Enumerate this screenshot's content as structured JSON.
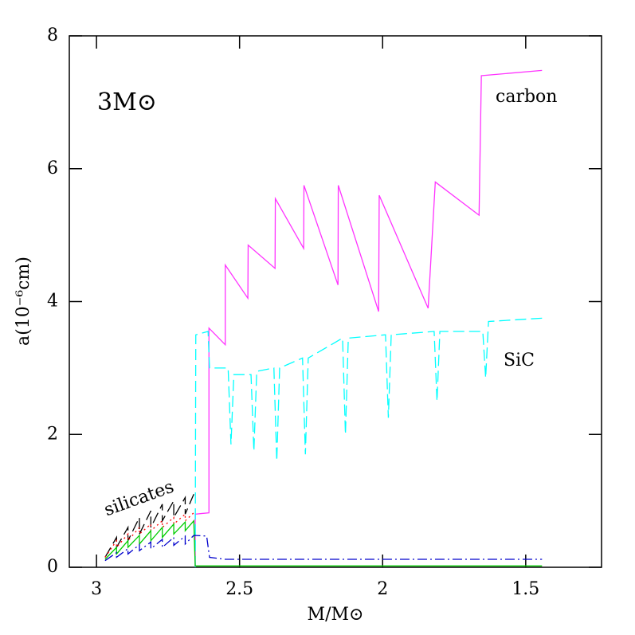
{
  "chart_data": {
    "type": "line",
    "xlabel": "M/M⊙",
    "ylabel": "a(10⁻⁶cm)",
    "annotations": [
      "3M⊙",
      "carbon",
      "SiC",
      "silicates"
    ],
    "xlim": [
      3.095,
      1.235
    ],
    "ylim": [
      0,
      8
    ],
    "xticks": [
      3,
      2.5,
      2,
      1.5
    ],
    "yticks": [
      0,
      2,
      4,
      6,
      8
    ],
    "series": [
      {
        "name": "carbon",
        "color": "#ff33ff",
        "style": "solid",
        "x": [
          2.655,
          2.655,
          2.607,
          2.607,
          2.55,
          2.55,
          2.471,
          2.47,
          2.376,
          2.375,
          2.276,
          2.275,
          2.156,
          2.155,
          2.014,
          2.012,
          1.841,
          1.816,
          1.663,
          1.655,
          1.443
        ],
        "values": [
          0,
          0.8,
          0.82,
          3.6,
          3.35,
          4.55,
          4.05,
          4.85,
          4.5,
          5.55,
          4.8,
          5.75,
          4.25,
          5.75,
          3.85,
          5.6,
          3.9,
          5.8,
          5.3,
          7.4,
          7.48
        ]
      },
      {
        "name": "SiC",
        "color": "#00ffff",
        "style": "dashed",
        "x": [
          2.655,
          2.653,
          2.61,
          2.605,
          2.54,
          2.53,
          2.52,
          2.46,
          2.45,
          2.44,
          2.38,
          2.37,
          2.36,
          2.28,
          2.27,
          2.26,
          2.14,
          2.13,
          2.12,
          1.99,
          1.98,
          1.97,
          1.82,
          1.81,
          1.8,
          1.65,
          1.64,
          1.63,
          1.443
        ],
        "values": [
          0,
          3.5,
          3.55,
          3.0,
          3.0,
          1.85,
          2.9,
          2.9,
          1.75,
          2.95,
          3.0,
          1.6,
          3.0,
          3.15,
          1.7,
          3.15,
          3.45,
          2.0,
          3.45,
          3.5,
          2.25,
          3.5,
          3.55,
          2.5,
          3.55,
          3.55,
          2.85,
          3.7,
          3.75
        ]
      },
      {
        "name": "silicates",
        "color": "#000000",
        "style": "dashed",
        "x": [
          2.97,
          2.93,
          2.93,
          2.89,
          2.89,
          2.85,
          2.85,
          2.81,
          2.81,
          2.77,
          2.77,
          2.73,
          2.73,
          2.69,
          2.69,
          2.66
        ],
        "values": [
          0.15,
          0.45,
          0.3,
          0.6,
          0.4,
          0.75,
          0.5,
          0.85,
          0.6,
          0.95,
          0.7,
          1.0,
          0.75,
          1.05,
          0.8,
          1.1
        ]
      },
      {
        "color": "#ff0000",
        "style": "dotted",
        "x": [
          2.97,
          2.93,
          2.93,
          2.89,
          2.89,
          2.85,
          2.85,
          2.81,
          2.81,
          2.77,
          2.77,
          2.73,
          2.73,
          2.69,
          2.69,
          2.66
        ],
        "values": [
          0.15,
          0.4,
          0.3,
          0.5,
          0.4,
          0.6,
          0.5,
          0.65,
          0.55,
          0.7,
          0.6,
          0.75,
          0.65,
          0.8,
          0.7,
          0.82
        ]
      },
      {
        "color": "#00cc00",
        "style": "solid",
        "x": [
          2.97,
          2.93,
          2.93,
          2.89,
          2.89,
          2.85,
          2.85,
          2.81,
          2.81,
          2.77,
          2.77,
          2.73,
          2.73,
          2.69,
          2.69,
          2.66,
          2.655,
          1.443
        ],
        "values": [
          0.12,
          0.3,
          0.2,
          0.4,
          0.3,
          0.48,
          0.35,
          0.55,
          0.4,
          0.6,
          0.45,
          0.65,
          0.5,
          0.68,
          0.55,
          0.7,
          0.02,
          0.02
        ]
      },
      {
        "color": "#0000cc",
        "style": "dashdot",
        "x": [
          2.97,
          2.93,
          2.93,
          2.89,
          2.89,
          2.85,
          2.85,
          2.81,
          2.81,
          2.77,
          2.77,
          2.73,
          2.73,
          2.69,
          2.69,
          2.66,
          2.615,
          2.605,
          2.55,
          1.443
        ],
        "values": [
          0.1,
          0.22,
          0.15,
          0.28,
          0.2,
          0.34,
          0.25,
          0.38,
          0.28,
          0.42,
          0.3,
          0.45,
          0.33,
          0.47,
          0.35,
          0.48,
          0.47,
          0.15,
          0.12,
          0.12
        ]
      }
    ]
  }
}
